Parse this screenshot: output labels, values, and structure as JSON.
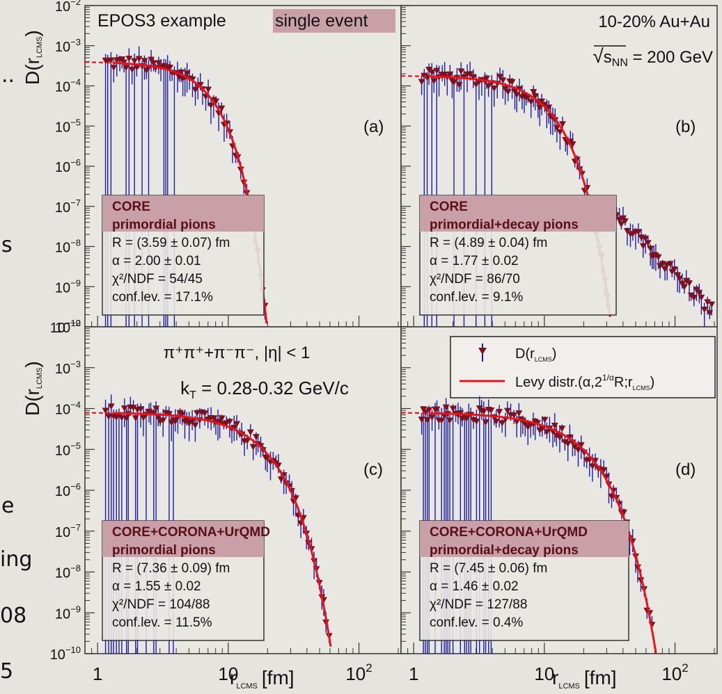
{
  "slide_fragments": [
    "..",
    "s",
    "e",
    "ing",
    "08",
    "5"
  ],
  "axes": {
    "ylabel_top": "D(r",
    "ylabel_bottom": "D(r",
    "ylabel_sub": "LCMS",
    "ylabel_close": ")",
    "ytick_base": "10",
    "ytick_exponents_top": [
      "−2",
      "−3",
      "−4",
      "−5",
      "−6",
      "−7",
      "−8",
      "−9",
      "−10"
    ],
    "ytick_exponents_bottom": [
      "−2",
      "−3",
      "−4",
      "−5",
      "−6",
      "−7",
      "−8",
      "−9",
      "−10"
    ],
    "xticks": [
      {
        "label": "1",
        "value": 1
      },
      {
        "label": "10",
        "value": 10
      },
      {
        "label": "10",
        "sup": "2",
        "value": 100
      }
    ],
    "xlabel_main": "r",
    "xlabel_sub": "LCMS",
    "xlabel_unit": "[fm]"
  },
  "annotations": {
    "title_plain": "EPOS3 example ",
    "title_highlight": "single event",
    "system": "10-20% Au+Au",
    "energy_prefix": "√",
    "energy_s": "s",
    "energy_sub": "NN",
    "energy_value": " = 200 GeV",
    "pairs": "π⁺π⁺+π⁻π⁻, |η| < 1",
    "kt_main": "k",
    "kt_sub": "T",
    "kt_value": " = 0.28-0.32 GeV/c"
  },
  "legend": {
    "data_label": "D(r",
    "data_sub": "LCMS",
    "data_close": ")",
    "fit_label": "Levy distr.(α,2",
    "fit_sup": "1/α",
    "fit_label2": "R;r",
    "fit_sub": "LCMS",
    "fit_close": ")"
  },
  "colors": {
    "data": "#7a1220",
    "errorbar": "#1a1aa8",
    "fit": "#e8141b",
    "highlight": "#c9a0a8"
  },
  "chart_data": [
    {
      "type": "scatter",
      "panel": "(a)",
      "box_title": "CORE",
      "box_subtitle": "primordial pions",
      "fit_R": "R = (3.59 ± 0.07) fm",
      "fit_alpha": "α = 2.00 ± 0.01",
      "fit_chi2": "χ²/NDF = 54/45",
      "fit_cl": "conf.lev. = 17.1%",
      "R": 3.59,
      "alpha": 2.0,
      "norm": 0.0004,
      "xmax": 25,
      "xscale": "log",
      "yscale": "log",
      "xlim": [
        0.8,
        210
      ],
      "ylim": [
        1e-10,
        0.01
      ]
    },
    {
      "type": "scatter",
      "panel": "(b)",
      "box_title": "CORE",
      "box_subtitle": "primordial+decay pions",
      "fit_R": "R = (4.89 ± 0.04) fm",
      "fit_alpha": "α = 1.77 ± 0.02",
      "fit_chi2": "χ²/NDF = 86/70",
      "fit_cl": "conf.lev. = 9.1%",
      "R": 4.89,
      "alpha": 1.77,
      "norm": 0.00018,
      "xmax": 200,
      "xscale": "log",
      "yscale": "log",
      "xlim": [
        0.8,
        210
      ],
      "ylim": [
        1e-10,
        0.01
      ]
    },
    {
      "type": "scatter",
      "panel": "(c)",
      "box_title": "CORE+CORONA+UrQMD",
      "box_subtitle": "primordial pions",
      "fit_R": "R = (7.36 ± 0.09) fm",
      "fit_alpha": "α = 1.55 ± 0.02",
      "fit_chi2": "χ²/NDF = 104/88",
      "fit_cl": "conf.lev. = 11.5%",
      "R": 7.36,
      "alpha": 1.55,
      "norm": 8e-05,
      "xmax": 150,
      "xscale": "log",
      "yscale": "log",
      "xlim": [
        0.8,
        210
      ],
      "ylim": [
        1e-10,
        0.01
      ]
    },
    {
      "type": "scatter",
      "panel": "(d)",
      "box_title": "CORE+CORONA+UrQMD",
      "box_subtitle": "primordial+decay pions",
      "fit_R": "R = (7.45 ± 0.06) fm",
      "fit_alpha": "α = 1.46 ± 0.02",
      "fit_chi2": "χ²/NDF = 127/88",
      "fit_cl": "conf.lev. = 0.4%",
      "R": 7.45,
      "alpha": 1.46,
      "norm": 8e-05,
      "xmax": 200,
      "xscale": "log",
      "yscale": "log",
      "xlim": [
        0.8,
        210
      ],
      "ylim": [
        1e-10,
        0.01
      ]
    }
  ]
}
